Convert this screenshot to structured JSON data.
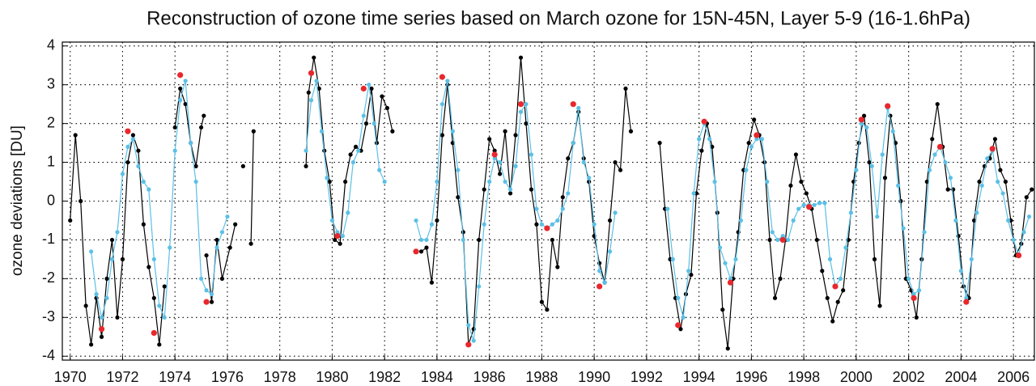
{
  "chart_data": {
    "type": "line",
    "title": "Reconstruction of ozone time series based on March ozone for 15N-45N, Layer 5-9 (16-1.6hPa)",
    "y_label": "ozone deviations [DU]",
    "xlim": [
      1969.7,
      2006.8
    ],
    "ylim": [
      -4.1,
      4.1
    ],
    "xticks": [
      1970,
      1972,
      1974,
      1976,
      1978,
      1980,
      1982,
      1984,
      1986,
      1988,
      1990,
      1992,
      1994,
      1996,
      1998,
      2000,
      2002,
      2004,
      2006
    ],
    "yticks": [
      -4,
      -3,
      -2,
      -1,
      0,
      1,
      2,
      3,
      4
    ],
    "grid": true,
    "series": [
      {
        "color": "#000000",
        "line": true,
        "x": [
          1970.0,
          1970.2,
          1970.4,
          1970.6,
          1970.8,
          1971.0,
          1971.2,
          1971.4,
          1971.6,
          1971.8,
          1972.0,
          1972.2,
          1972.4,
          1972.6,
          1972.8,
          1973.0,
          1973.2,
          1973.4,
          1973.6,
          1973.8,
          1974.0,
          1974.2,
          1974.4,
          1974.6,
          1974.8,
          1975.0,
          1975.1,
          1975.15,
          1975.2,
          1975.4,
          1975.6,
          1975.8,
          1976.1,
          1976.3,
          1976.45,
          1976.6,
          1976.75,
          1976.9,
          1977.0,
          1978.0,
          1979.0,
          1979.1,
          1979.3,
          1979.5,
          1979.7,
          1979.9,
          1980.1,
          1980.3,
          1980.5,
          1980.7,
          1980.9,
          1981.1,
          1981.3,
          1981.5,
          1981.7,
          1981.9,
          1982.1,
          1982.3,
          1982.8,
          1983.4,
          1983.6,
          1983.8,
          1984.0,
          1984.2,
          1984.4,
          1984.6,
          1984.8,
          1985.0,
          1985.2,
          1985.4,
          1985.6,
          1985.8,
          1986.0,
          1986.2,
          1986.4,
          1986.6,
          1986.8,
          1987.0,
          1987.2,
          1987.4,
          1987.6,
          1987.8,
          1988.0,
          1988.2,
          1988.4,
          1988.6,
          1988.8,
          1989.0,
          1989.2,
          1989.4,
          1989.6,
          1989.8,
          1990.0,
          1990.2,
          1990.4,
          1990.6,
          1990.8,
          1991.0,
          1991.2,
          1991.4,
          1992.0,
          1992.5,
          1992.7,
          1992.9,
          1993.1,
          1993.3,
          1993.5,
          1993.7,
          1993.9,
          1994.1,
          1994.3,
          1994.5,
          1994.7,
          1994.9,
          1995.1,
          1995.3,
          1995.5,
          1995.7,
          1995.9,
          1996.1,
          1996.3,
          1996.5,
          1996.7,
          1996.9,
          1997.1,
          1997.3,
          1997.5,
          1997.7,
          1997.9,
          1998.1,
          1998.3,
          1998.5,
          1998.7,
          1998.9,
          1999.1,
          1999.3,
          1999.5,
          1999.7,
          1999.9,
          2000.1,
          2000.3,
          2000.5,
          2000.7,
          2000.9,
          2001.1,
          2001.3,
          2001.5,
          2001.7,
          2001.9,
          2002.1,
          2002.3,
          2002.5,
          2002.7,
          2002.9,
          2003.1,
          2003.3,
          2003.5,
          2003.7,
          2003.9,
          2004.1,
          2004.3,
          2004.5,
          2004.7,
          2004.9,
          2005.1,
          2005.3,
          2005.5,
          2005.7,
          2005.9,
          2006.1,
          2006.3,
          2006.5,
          2006.7
        ],
        "values": [
          -0.5,
          1.7,
          0.0,
          -2.7,
          -3.7,
          -2.5,
          -3.5,
          -2.0,
          -1.0,
          -3.0,
          -1.5,
          1.0,
          1.7,
          1.3,
          -0.6,
          -1.7,
          -2.5,
          -3.7,
          -2.2,
          null,
          1.9,
          2.9,
          2.5,
          1.5,
          0.9,
          1.9,
          2.2,
          null,
          -1.4,
          -2.6,
          -1.0,
          -2.0,
          -1.2,
          -0.6,
          null,
          0.9,
          null,
          -1.1,
          1.8,
          null,
          0.9,
          2.8,
          3.7,
          2.9,
          1.3,
          0.5,
          -1.0,
          -1.1,
          0.5,
          1.2,
          1.4,
          1.3,
          2.0,
          2.9,
          1.5,
          2.7,
          2.4,
          1.8,
          null,
          -1.3,
          -1.2,
          -2.1,
          -0.5,
          1.7,
          3.0,
          1.5,
          0.1,
          -0.8,
          -3.7,
          -3.3,
          -1.0,
          0.3,
          1.6,
          1.3,
          0.7,
          1.8,
          0.2,
          1.7,
          3.7,
          2.0,
          0.3,
          -0.6,
          -2.6,
          -2.8,
          -1.0,
          -1.7,
          0.1,
          1.1,
          1.5,
          2.3,
          1.1,
          0.5,
          -0.9,
          -1.6,
          -2.1,
          -0.5,
          1.0,
          0.8,
          2.9,
          1.8,
          null,
          1.5,
          -0.2,
          -1.5,
          -2.5,
          -3.3,
          -2.4,
          -1.9,
          0.2,
          1.3,
          2.0,
          1.4,
          -0.3,
          -2.8,
          -3.8,
          -2.0,
          -0.8,
          0.8,
          1.5,
          2.1,
          1.7,
          1.0,
          -1.0,
          -2.5,
          -2.0,
          -1.0,
          0.4,
          1.2,
          0.5,
          0.2,
          -0.2,
          -1.0,
          -1.8,
          -2.5,
          -3.1,
          -2.6,
          -2.3,
          -1.0,
          0.5,
          1.5,
          2.2,
          1.0,
          -1.5,
          -2.7,
          0.6,
          2.2,
          1.5,
          0.0,
          -2.0,
          -2.3,
          -3.0,
          -1.5,
          0.5,
          1.6,
          2.5,
          1.4,
          0.3,
          0.3,
          -0.9,
          -2.2,
          -2.5,
          -0.5,
          0.5,
          0.9,
          1.1,
          1.6,
          0.8,
          0.5,
          -0.5,
          -1.4,
          -1.1,
          0.1,
          0.3
        ]
      },
      {
        "color": "#5bc0e6",
        "line": true,
        "x": [
          1970.8,
          1971.0,
          1971.2,
          1971.4,
          1971.6,
          1971.8,
          1972.0,
          1972.2,
          1972.4,
          1972.6,
          1972.8,
          1973.0,
          1973.2,
          1973.4,
          1973.6,
          1973.8,
          1974.0,
          1974.2,
          1974.4,
          1974.6,
          1974.8,
          1975.0,
          1975.2,
          1975.4,
          1975.6,
          1975.8,
          1976.0,
          1978.0,
          1979.0,
          1979.2,
          1979.4,
          1979.6,
          1979.8,
          1980.0,
          1980.2,
          1980.4,
          1980.6,
          1980.8,
          1981.0,
          1981.2,
          1981.4,
          1981.6,
          1981.8,
          1982.0,
          1982.6,
          1983.2,
          1983.4,
          1983.6,
          1983.8,
          1984.0,
          1984.2,
          1984.4,
          1984.6,
          1984.8,
          1985.0,
          1985.2,
          1985.4,
          1985.6,
          1985.8,
          1986.0,
          1986.2,
          1986.4,
          1986.6,
          1986.8,
          1987.0,
          1987.2,
          1987.4,
          1987.6,
          1987.8,
          1988.0,
          1988.2,
          1988.4,
          1988.6,
          1988.8,
          1989.0,
          1989.2,
          1989.4,
          1989.6,
          1989.8,
          1990.0,
          1990.2,
          1990.4,
          1990.6,
          1990.8,
          1992.0,
          1992.8,
          1993.0,
          1993.2,
          1993.4,
          1993.6,
          1993.8,
          1994.0,
          1994.2,
          1994.4,
          1994.6,
          1994.8,
          1995.0,
          1995.2,
          1995.4,
          1995.6,
          1995.8,
          1996.0,
          1996.2,
          1996.4,
          1996.6,
          1996.8,
          1997.0,
          1997.2,
          1997.4,
          1997.6,
          1997.8,
          1998.0,
          1998.2,
          1998.4,
          1998.6,
          1998.8,
          1999.0,
          1999.2,
          1999.4,
          1999.6,
          1999.8,
          2000.0,
          2000.2,
          2000.4,
          2000.6,
          2000.8,
          2001.0,
          2001.2,
          2001.4,
          2001.6,
          2001.8,
          2002.0,
          2002.2,
          2002.4,
          2002.6,
          2002.8,
          2003.0,
          2003.2,
          2003.4,
          2003.6,
          2003.8,
          2004.0,
          2004.2,
          2004.4,
          2004.6,
          2004.8,
          2005.0,
          2005.2,
          2005.4,
          2005.6,
          2005.8,
          2006.0,
          2006.2,
          2006.4,
          2006.6
        ],
        "values": [
          -1.3,
          -2.4,
          -3.0,
          -2.5,
          -1.5,
          -0.8,
          0.7,
          1.4,
          1.6,
          0.9,
          0.5,
          0.3,
          -1.5,
          -2.7,
          -3.0,
          -1.2,
          1.3,
          2.6,
          3.1,
          1.5,
          0.5,
          -2.0,
          -2.3,
          -2.4,
          -1.2,
          -0.8,
          -0.4,
          null,
          1.3,
          2.6,
          3.1,
          1.8,
          0.6,
          -0.5,
          -0.8,
          -0.9,
          -0.3,
          1.0,
          1.3,
          2.2,
          3.0,
          2.0,
          0.8,
          0.5,
          null,
          -0.5,
          -1.0,
          -1.0,
          -0.6,
          0.5,
          2.5,
          3.1,
          1.8,
          0.8,
          -1.0,
          -3.2,
          -3.6,
          -2.2,
          -0.6,
          0.5,
          1.1,
          1.0,
          0.5,
          0.3,
          0.9,
          2.3,
          2.5,
          1.2,
          -0.2,
          -0.6,
          -0.7,
          -0.6,
          -0.5,
          -0.2,
          0.2,
          1.5,
          2.4,
          1.0,
          0.6,
          -0.6,
          -1.8,
          -2.1,
          -1.3,
          -0.3,
          null,
          -0.2,
          -1.5,
          -2.5,
          -3.0,
          -1.8,
          0.2,
          1.6,
          2.0,
          1.6,
          0.5,
          -1.2,
          -1.6,
          -2.0,
          -1.5,
          -0.5,
          0.8,
          1.4,
          1.6,
          1.6,
          0.5,
          -0.8,
          -1.0,
          -0.9,
          -1.0,
          -0.5,
          -0.2,
          -0.1,
          -0.1,
          -0.1,
          -0.05,
          -0.05,
          -1.5,
          -2.2,
          -2.0,
          -1.2,
          -0.3,
          0.8,
          2.0,
          1.9,
          0.9,
          -0.4,
          1.2,
          2.4,
          1.8,
          0.4,
          -0.7,
          -2.0,
          -2.4,
          -2.3,
          -0.8,
          0.8,
          1.2,
          1.4,
          1.0,
          0.6,
          -0.5,
          -1.8,
          -2.5,
          -1.5,
          -0.3,
          0.4,
          1.1,
          1.3,
          0.5,
          0.2,
          -0.5,
          -1.0,
          -1.4,
          -0.8,
          -0.4
        ]
      },
      {
        "color": "#e8282d",
        "line": false,
        "x": [
          1971.2,
          1972.2,
          1973.2,
          1974.2,
          1975.2,
          1979.2,
          1980.2,
          1981.2,
          1983.2,
          1984.2,
          1985.2,
          1986.2,
          1987.2,
          1988.2,
          1989.2,
          1990.2,
          1993.2,
          1994.2,
          1995.2,
          1996.2,
          1997.2,
          1998.2,
          1999.2,
          2000.2,
          2001.2,
          2002.2,
          2003.2,
          2004.2,
          2005.2,
          2006.2
        ],
        "values": [
          -3.3,
          1.8,
          -3.4,
          3.25,
          -2.6,
          3.3,
          -0.9,
          2.9,
          -1.3,
          3.2,
          -3.7,
          1.2,
          2.5,
          -0.7,
          2.5,
          -2.2,
          -3.2,
          2.05,
          -2.1,
          1.7,
          -1.0,
          -0.15,
          -2.2,
          2.1,
          2.45,
          -2.5,
          1.4,
          -2.6,
          1.35,
          -1.4
        ]
      }
    ]
  }
}
